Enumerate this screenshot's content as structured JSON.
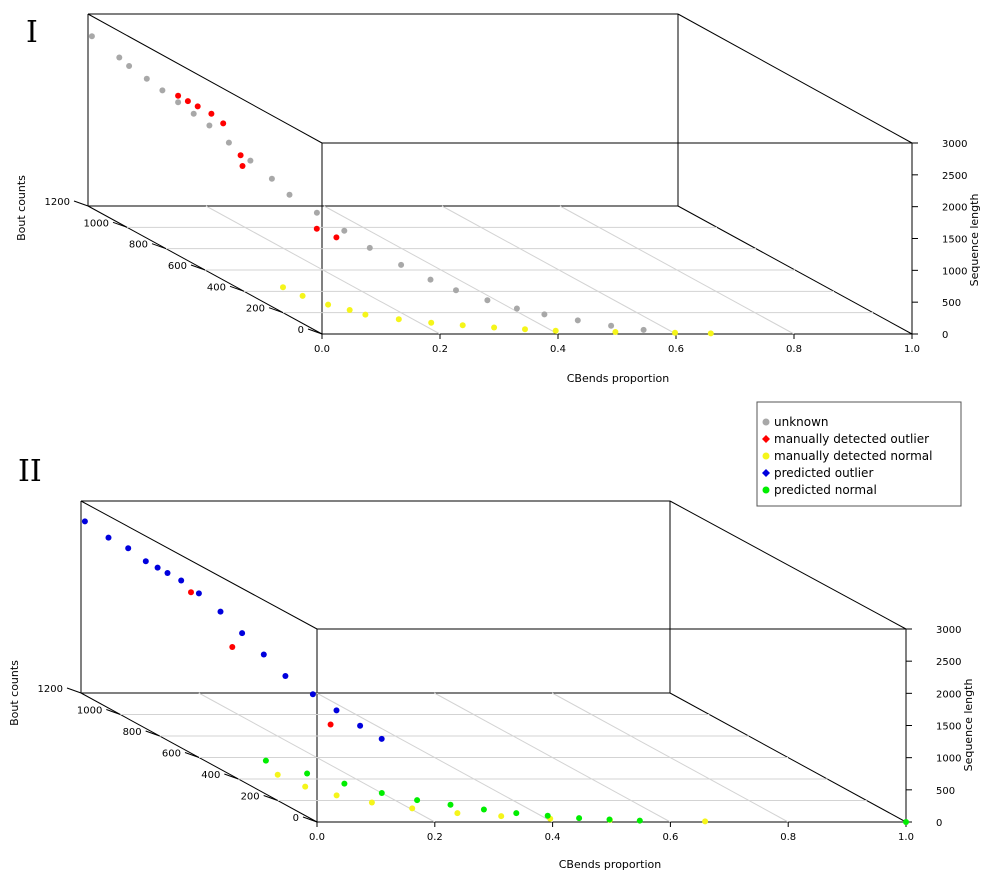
{
  "panels": [
    {
      "label": "I",
      "x_axis_title": "CBends  proportion",
      "y_axis_title": "Bout counts",
      "z_axis_title": "Sequence length",
      "x_ticks": [
        "0.0",
        "0.2",
        "0.4",
        "0.6",
        "0.8",
        "1.0"
      ],
      "y_ticks": [
        "0",
        "200",
        "400",
        "600",
        "800",
        "1000",
        "1200"
      ],
      "z_ticks": [
        "0",
        "500",
        "1000",
        "1500",
        "2000",
        "2500",
        "3000"
      ]
    },
    {
      "label": "II",
      "x_axis_title": "CBends  proportion",
      "y_axis_title": "Bout counts",
      "z_axis_title": "Sequence length",
      "x_ticks": [
        "0.0",
        "0.2",
        "0.4",
        "0.6",
        "0.8",
        "1.0"
      ],
      "y_ticks": [
        "0",
        "200",
        "400",
        "600",
        "800",
        "1000",
        "1200"
      ],
      "z_ticks": [
        "0",
        "500",
        "1000",
        "1500",
        "2000",
        "2500",
        "3000"
      ]
    }
  ],
  "legend": {
    "items": [
      {
        "label": "unknown",
        "color": "#a8a8a8",
        "marker": "circle"
      },
      {
        "label": "manually detected outlier",
        "color": "#ff0000",
        "marker": "diamond"
      },
      {
        "label": "manually detected normal",
        "color": "#f5f51a",
        "marker": "circle"
      },
      {
        "label": "predicted outlier",
        "color": "#0000dd",
        "marker": "diamond"
      },
      {
        "label": "predicted normal",
        "color": "#00ee00",
        "marker": "circle"
      }
    ]
  },
  "chart_data": [
    {
      "type": "scatter",
      "title": "I",
      "xlabel": "CBends  proportion",
      "ylabel": "Bout counts",
      "zlabel": "Sequence length",
      "xlim": [
        0,
        1
      ],
      "ylim": [
        0,
        1200
      ],
      "zlim": [
        0,
        3000
      ],
      "series": [
        {
          "name": "unknown",
          "color": "#a8a8a8",
          "points": [
            [
              0.0,
              1180,
              2700
            ],
            [
              0.02,
              1100,
              2500
            ],
            [
              0.03,
              1080,
              2400
            ],
            [
              0.05,
              1050,
              2250
            ],
            [
              0.06,
              1000,
              2150
            ],
            [
              0.07,
              950,
              2050
            ],
            [
              0.08,
              900,
              1950
            ],
            [
              0.09,
              850,
              1850
            ],
            [
              0.1,
              780,
              1700
            ],
            [
              0.11,
              700,
              1550
            ],
            [
              0.12,
              620,
              1400
            ],
            [
              0.13,
              560,
              1250
            ],
            [
              0.15,
              480,
              1100
            ],
            [
              0.17,
              400,
              950
            ],
            [
              0.19,
              330,
              800
            ],
            [
              0.22,
              260,
              650
            ],
            [
              0.25,
              200,
              520
            ],
            [
              0.28,
              160,
              420
            ],
            [
              0.32,
              120,
              330
            ],
            [
              0.36,
              90,
              250
            ],
            [
              0.4,
              70,
              190
            ],
            [
              0.45,
              50,
              130
            ],
            [
              0.5,
              30,
              80
            ],
            [
              0.55,
              15,
              40
            ]
          ]
        },
        {
          "name": "manually detected outlier",
          "color": "#ff0000",
          "points": [
            [
              0.08,
              980,
              2100
            ],
            [
              0.09,
              960,
              2050
            ],
            [
              0.1,
              940,
              2000
            ],
            [
              0.11,
              900,
              1950
            ],
            [
              0.12,
              870,
              1850
            ],
            [
              0.1,
              720,
              1600
            ],
            [
              0.09,
              680,
              1500
            ],
            [
              0.13,
              420,
              950
            ],
            [
              0.15,
              380,
              880
            ]
          ]
        },
        {
          "name": "manually detected normal",
          "color": "#f5f51a",
          "points": [
            [
              0.0,
              200,
              400
            ],
            [
              0.02,
              160,
              330
            ],
            [
              0.05,
              120,
              260
            ],
            [
              0.08,
              100,
              210
            ],
            [
              0.1,
              80,
              170
            ],
            [
              0.15,
              60,
              130
            ],
            [
              0.2,
              45,
              100
            ],
            [
              0.25,
              35,
              80
            ],
            [
              0.3,
              25,
              60
            ],
            [
              0.35,
              18,
              45
            ],
            [
              0.4,
              12,
              30
            ],
            [
              0.5,
              8,
              18
            ],
            [
              0.6,
              5,
              10
            ],
            [
              0.66,
              3,
              5
            ]
          ]
        }
      ]
    },
    {
      "type": "scatter",
      "title": "II",
      "xlabel": "CBends  proportion",
      "ylabel": "Bout counts",
      "zlabel": "Sequence length",
      "xlim": [
        0,
        1
      ],
      "ylim": [
        0,
        1200
      ],
      "zlim": [
        0,
        3000
      ],
      "series": [
        {
          "name": "predicted outlier",
          "color": "#0000dd",
          "points": [
            [
              0.0,
              1180,
              2700
            ],
            [
              0.02,
              1120,
              2550
            ],
            [
              0.04,
              1080,
              2450
            ],
            [
              0.06,
              1050,
              2300
            ],
            [
              0.07,
              1020,
              2250
            ],
            [
              0.08,
              1000,
              2200
            ],
            [
              0.09,
              960,
              2150
            ],
            [
              0.1,
              900,
              2050
            ],
            [
              0.11,
              820,
              1900
            ],
            [
              0.12,
              740,
              1700
            ],
            [
              0.13,
              660,
              1500
            ],
            [
              0.14,
              580,
              1300
            ],
            [
              0.16,
              500,
              1150
            ],
            [
              0.18,
              440,
              1000
            ],
            [
              0.2,
              380,
              860
            ],
            [
              0.22,
              330,
              740
            ]
          ]
        },
        {
          "name": "manually detected outlier",
          "color": "#ff0000",
          "points": [
            [
              0.1,
              940,
              2000
            ],
            [
              0.09,
              700,
              1550
            ],
            [
              0.15,
              380,
              880
            ]
          ]
        },
        {
          "name": "manually detected normal",
          "color": "#f5f51a",
          "points": [
            [
              0.0,
              200,
              400
            ],
            [
              0.03,
              150,
              300
            ],
            [
              0.07,
              110,
              230
            ],
            [
              0.12,
              80,
              170
            ],
            [
              0.18,
              55,
              120
            ],
            [
              0.25,
              35,
              80
            ],
            [
              0.32,
              22,
              55
            ],
            [
              0.4,
              12,
              30
            ],
            [
              0.5,
              8,
              18
            ],
            [
              0.66,
              3,
              5
            ]
          ]
        },
        {
          "name": "predicted normal",
          "color": "#00ee00",
          "points": [
            [
              0.0,
              260,
              520
            ],
            [
              0.05,
              200,
              420
            ],
            [
              0.1,
              160,
              330
            ],
            [
              0.15,
              120,
              250
            ],
            [
              0.2,
              90,
              190
            ],
            [
              0.25,
              70,
              150
            ],
            [
              0.3,
              50,
              110
            ],
            [
              0.35,
              35,
              80
            ],
            [
              0.4,
              25,
              55
            ],
            [
              0.45,
              15,
              35
            ],
            [
              0.5,
              10,
              22
            ],
            [
              0.55,
              6,
              12
            ],
            [
              1.0,
              0,
              0
            ]
          ]
        }
      ]
    }
  ]
}
